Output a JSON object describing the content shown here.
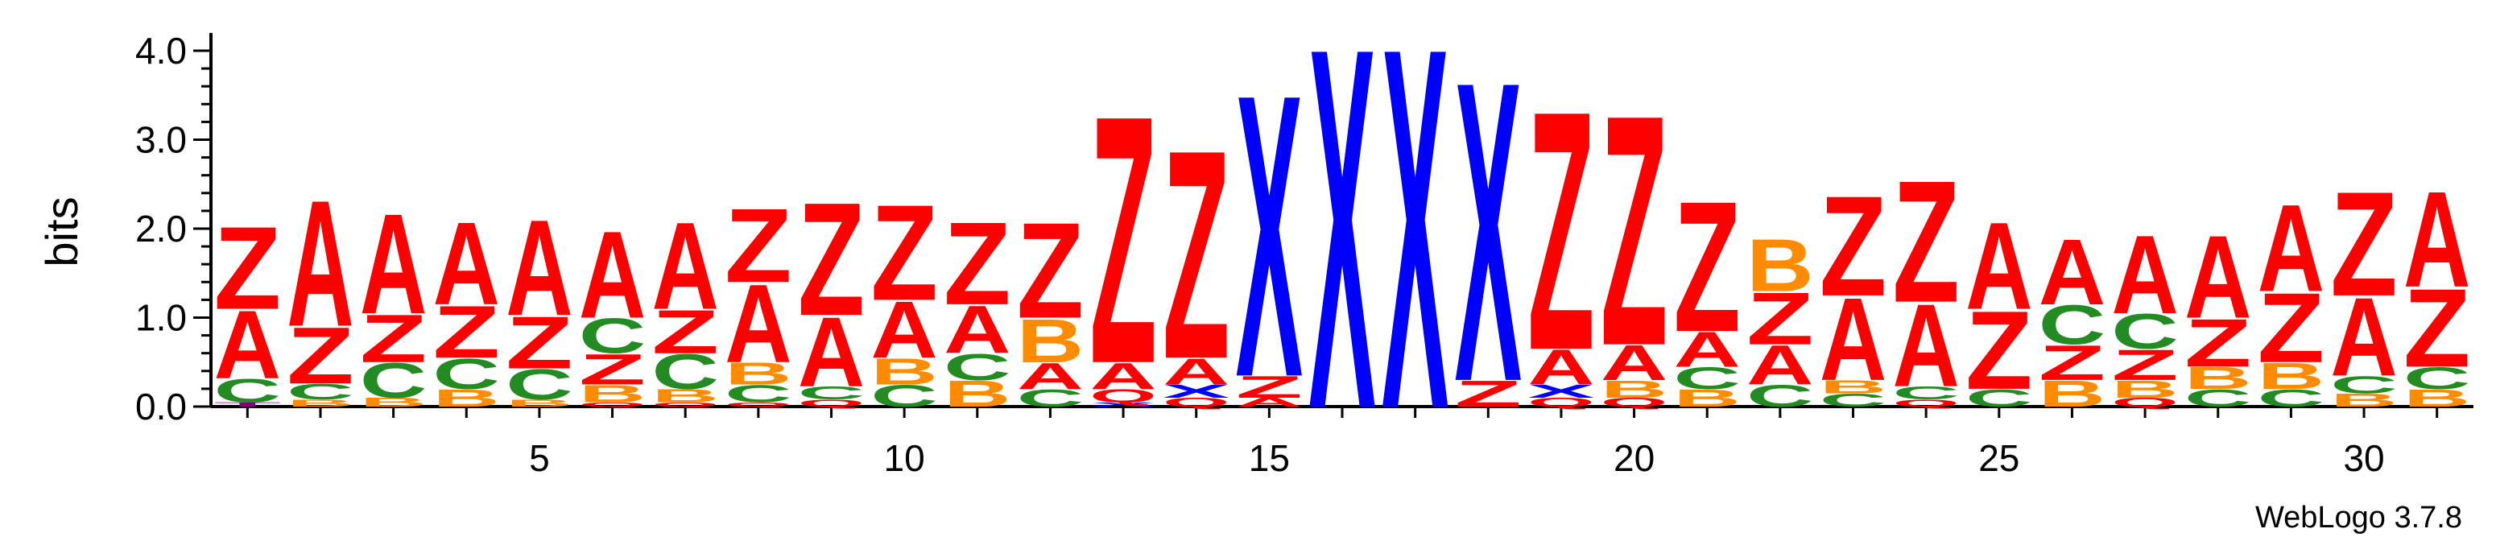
{
  "chart_data": {
    "type": "sequence-logo",
    "ylabel": "bits",
    "ylim": [
      0,
      4.2
    ],
    "y_ticks": [
      "0.0",
      "1.0",
      "2.0",
      "3.0",
      "4.0"
    ],
    "x_ticks": [
      "5",
      "10",
      "15",
      "20",
      "25",
      "30"
    ],
    "x_tick_positions": [
      5,
      10,
      15,
      20,
      25,
      30
    ],
    "credit": "WebLogo 3.7.8",
    "colors": {
      "A": "#ff0000",
      "Z": "#ff0000",
      "X": "#0000ff",
      "B": "#ff8c00",
      "C": "#228b22",
      "Q": "#ff0000",
      "T": "#800080"
    },
    "positions": [
      {
        "pos": 1,
        "stack": [
          [
            "T",
            0.05
          ],
          [
            "C",
            0.27
          ],
          [
            "A",
            0.78
          ],
          [
            "Z",
            0.95
          ]
        ]
      },
      {
        "pos": 2,
        "stack": [
          [
            "B",
            0.08
          ],
          [
            "C",
            0.18
          ],
          [
            "Z",
            0.65
          ],
          [
            "A",
            1.45
          ]
        ]
      },
      {
        "pos": 3,
        "stack": [
          [
            "B",
            0.1
          ],
          [
            "C",
            0.4
          ],
          [
            "Z",
            0.55
          ],
          [
            "A",
            1.15
          ]
        ]
      },
      {
        "pos": 4,
        "stack": [
          [
            "B",
            0.2
          ],
          [
            "C",
            0.35
          ],
          [
            "Z",
            0.6
          ],
          [
            "A",
            0.95
          ]
        ]
      },
      {
        "pos": 5,
        "stack": [
          [
            "B",
            0.08
          ],
          [
            "C",
            0.35
          ],
          [
            "Z",
            0.6
          ],
          [
            "A",
            1.1
          ]
        ]
      },
      {
        "pos": 6,
        "stack": [
          [
            "Q",
            0.05
          ],
          [
            "B",
            0.2
          ],
          [
            "Z",
            0.35
          ],
          [
            "C",
            0.4
          ],
          [
            "A",
            1.0
          ]
        ]
      },
      {
        "pos": 7,
        "stack": [
          [
            "Q",
            0.05
          ],
          [
            "B",
            0.15
          ],
          [
            "C",
            0.4
          ],
          [
            "Z",
            0.5
          ],
          [
            "A",
            1.0
          ]
        ]
      },
      {
        "pos": 8,
        "stack": [
          [
            "Q",
            0.05
          ],
          [
            "C",
            0.2
          ],
          [
            "B",
            0.25
          ],
          [
            "A",
            0.9
          ],
          [
            "Z",
            0.85
          ]
        ]
      },
      {
        "pos": 9,
        "stack": [
          [
            "Q",
            0.08
          ],
          [
            "C",
            0.15
          ],
          [
            "A",
            0.8
          ],
          [
            "Z",
            1.3
          ]
        ]
      },
      {
        "pos": 10,
        "stack": [
          [
            "C",
            0.25
          ],
          [
            "B",
            0.3
          ],
          [
            "A",
            0.65
          ],
          [
            "Z",
            1.1
          ]
        ]
      },
      {
        "pos": 11,
        "stack": [
          [
            "B",
            0.3
          ],
          [
            "C",
            0.3
          ],
          [
            "A",
            0.55
          ],
          [
            "Z",
            0.95
          ]
        ]
      },
      {
        "pos": 12,
        "stack": [
          [
            "C",
            0.2
          ],
          [
            "A",
            0.3
          ],
          [
            "B",
            0.5
          ],
          [
            "Z",
            1.1
          ]
        ]
      },
      {
        "pos": 13,
        "stack": [
          [
            "X",
            0.05
          ],
          [
            "Q",
            0.15
          ],
          [
            "A",
            0.3
          ],
          [
            "Z",
            2.85
          ]
        ]
      },
      {
        "pos": 14,
        "stack": [
          [
            "Q",
            0.1
          ],
          [
            "X",
            0.15
          ],
          [
            "A",
            0.3
          ],
          [
            "Z",
            2.4
          ]
        ]
      },
      {
        "pos": 15,
        "stack": [
          [
            "A",
            0.1
          ],
          [
            "Z",
            0.25
          ],
          [
            "X",
            3.25
          ]
        ]
      },
      {
        "pos": 16,
        "stack": [
          [
            "X",
            4.15
          ]
        ]
      },
      {
        "pos": 17,
        "stack": [
          [
            "X",
            4.15
          ]
        ]
      },
      {
        "pos": 18,
        "stack": [
          [
            "Z",
            0.3
          ],
          [
            "X",
            3.45
          ]
        ]
      },
      {
        "pos": 19,
        "stack": [
          [
            "Q",
            0.1
          ],
          [
            "X",
            0.15
          ],
          [
            "A",
            0.4
          ],
          [
            "Z",
            2.75
          ]
        ]
      },
      {
        "pos": 20,
        "stack": [
          [
            "Q",
            0.1
          ],
          [
            "B",
            0.2
          ],
          [
            "A",
            0.4
          ],
          [
            "Z",
            2.65
          ]
        ]
      },
      {
        "pos": 21,
        "stack": [
          [
            "B",
            0.2
          ],
          [
            "C",
            0.25
          ],
          [
            "A",
            0.4
          ],
          [
            "Z",
            1.5
          ]
        ]
      },
      {
        "pos": 22,
        "stack": [
          [
            "C",
            0.25
          ],
          [
            "A",
            0.45
          ],
          [
            "Z",
            0.6
          ],
          [
            "B",
            0.6
          ]
        ]
      },
      {
        "pos": 23,
        "stack": [
          [
            "C",
            0.15
          ],
          [
            "B",
            0.15
          ],
          [
            "A",
            0.95
          ],
          [
            "Z",
            1.15
          ]
        ]
      },
      {
        "pos": 24,
        "stack": [
          [
            "Q",
            0.08
          ],
          [
            "C",
            0.15
          ],
          [
            "A",
            0.95
          ],
          [
            "Z",
            1.4
          ]
        ]
      },
      {
        "pos": 25,
        "stack": [
          [
            "C",
            0.2
          ],
          [
            "Z",
            0.9
          ],
          [
            "A",
            1.0
          ]
        ]
      },
      {
        "pos": 26,
        "stack": [
          [
            "B",
            0.3
          ],
          [
            "Z",
            0.4
          ],
          [
            "C",
            0.45
          ],
          [
            "A",
            0.75
          ]
        ]
      },
      {
        "pos": 27,
        "stack": [
          [
            "Q",
            0.1
          ],
          [
            "B",
            0.2
          ],
          [
            "Z",
            0.35
          ],
          [
            "C",
            0.4
          ],
          [
            "A",
            0.9
          ]
        ]
      },
      {
        "pos": 28,
        "stack": [
          [
            "C",
            0.2
          ],
          [
            "B",
            0.25
          ],
          [
            "Z",
            0.55
          ],
          [
            "A",
            0.95
          ]
        ]
      },
      {
        "pos": 29,
        "stack": [
          [
            "C",
            0.2
          ],
          [
            "B",
            0.3
          ],
          [
            "Z",
            0.8
          ],
          [
            "A",
            1.0
          ]
        ]
      },
      {
        "pos": 30,
        "stack": [
          [
            "B",
            0.15
          ],
          [
            "C",
            0.2
          ],
          [
            "A",
            0.9
          ],
          [
            "Z",
            1.2
          ]
        ]
      },
      {
        "pos": 31,
        "stack": [
          [
            "B",
            0.2
          ],
          [
            "C",
            0.25
          ],
          [
            "Z",
            0.9
          ],
          [
            "A",
            1.1
          ]
        ]
      }
    ]
  }
}
